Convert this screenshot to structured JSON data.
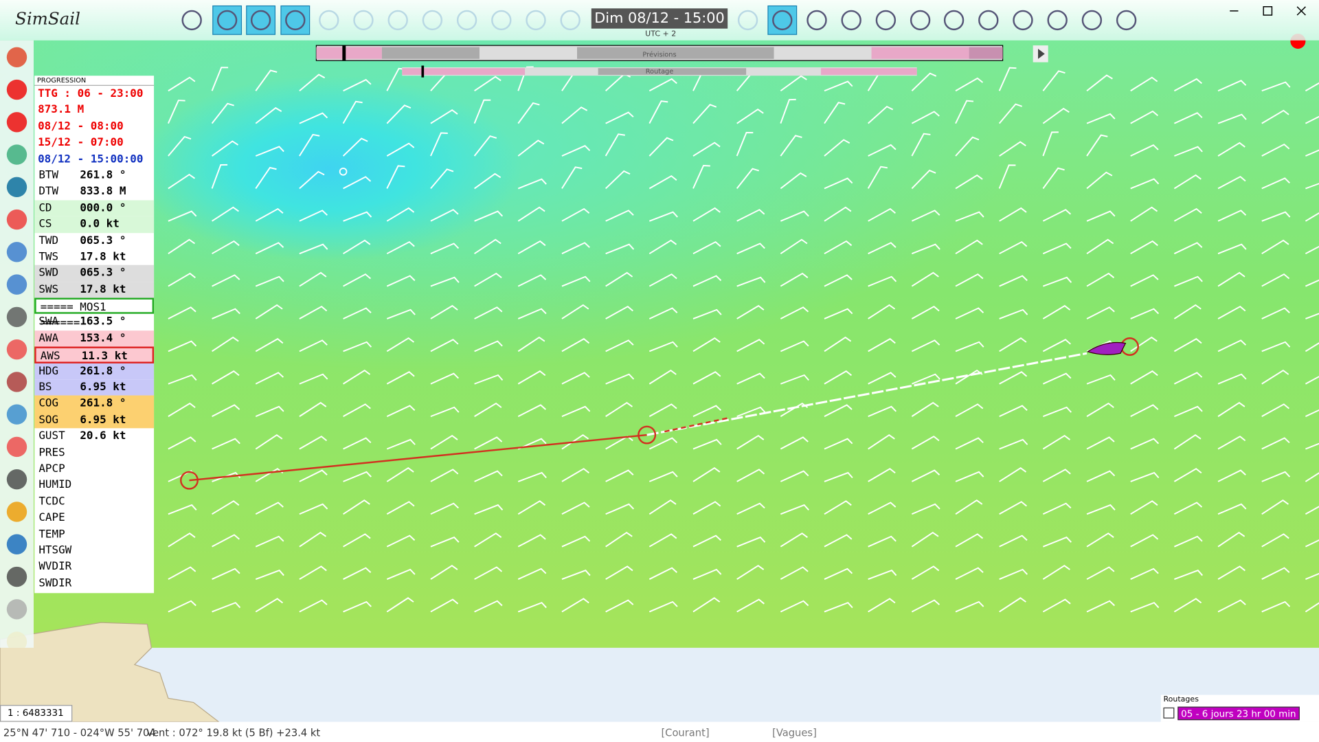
{
  "app": {
    "title": "SimSail"
  },
  "toolbar": {
    "date": "Dim 08/12 - 15:00",
    "timezone": "UTC + 2"
  },
  "timeline": {
    "forecast": "Prévisions",
    "routing": "Routage"
  },
  "panel": {
    "title": "PROGRESSION",
    "lines": [
      "TTG : 06 - 23:00",
      "873.1 M",
      "08/12 - 08:00",
      "15/12 - 07:00",
      "08/12 - 15:00:00"
    ],
    "rows": [
      {
        "label": "BTW",
        "value": "261.8 °"
      },
      {
        "label": "DTW",
        "value": "833.8 M"
      },
      {
        "label": "CD",
        "value": "000.0 °"
      },
      {
        "label": "CS",
        "value": "0.0 kt"
      },
      {
        "label": "TWD",
        "value": "065.3 °"
      },
      {
        "label": "TWS",
        "value": "17.8 kt"
      },
      {
        "label": "SWD",
        "value": "065.3 °"
      },
      {
        "label": "SWS",
        "value": "17.8 kt"
      },
      {
        "label": "===== MOS1 ======"
      },
      {
        "label": "SWA",
        "value": "163.5 °"
      },
      {
        "label": "AWA",
        "value": "153.4 °"
      },
      {
        "label": "AWS",
        "value": "11.3 kt"
      },
      {
        "label": "HDG",
        "value": "261.8 °"
      },
      {
        "label": "BS",
        "value": "6.95 kt"
      },
      {
        "label": "COG",
        "value": "261.8 °"
      },
      {
        "label": "SOG",
        "value": "6.95 kt"
      },
      {
        "label": "GUST",
        "value": "20.6 kt"
      },
      {
        "label": "PRES"
      },
      {
        "label": "APCP"
      },
      {
        "label": "HUMID"
      },
      {
        "label": "TCDC"
      },
      {
        "label": "CAPE"
      },
      {
        "label": "TEMP"
      },
      {
        "label": "HTSGW"
      },
      {
        "label": "WVDIR"
      },
      {
        "label": "SWDIR"
      }
    ]
  },
  "map": {
    "scale": "1 : 6483331"
  },
  "routages": {
    "title": "Routages",
    "item": "05 - 6 jours 23 hr 00 min"
  },
  "status": {
    "position": "25°N 47' 710 - 024°W 55' 704",
    "wind": "Vent : 072° 19.8 kt (5 Bf) +23.4 kt",
    "current": "[Courant]",
    "waves": "[Vagues]"
  }
}
